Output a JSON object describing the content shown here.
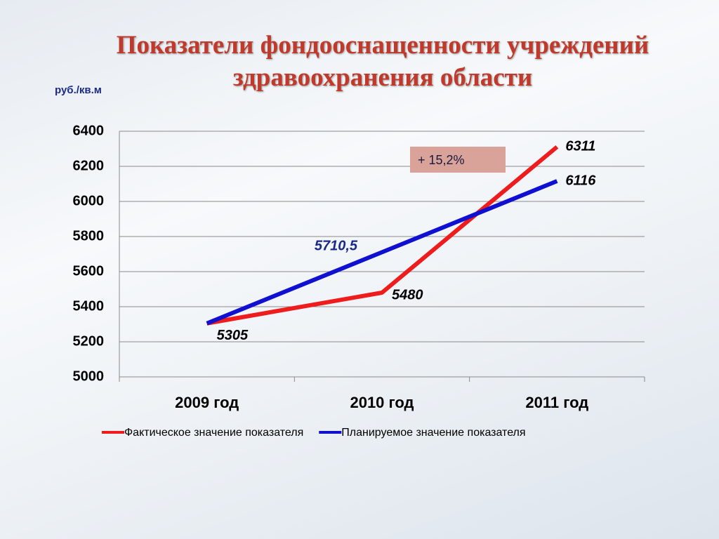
{
  "chart_data": {
    "type": "line",
    "title": "Показатели фондооснащенности учреждений здравоохранения области",
    "y_axis_label": "руб./кв.м",
    "annotation": "+ 15,2%",
    "categories": [
      "2009 год",
      "2010 год",
      "2011 год"
    ],
    "series": [
      {
        "name": "Фактическое значение показателя",
        "color": "#ee1c1c",
        "values": [
          5305,
          5480,
          6311
        ]
      },
      {
        "name": "Планируемое значение показателя",
        "color": "#1010d0",
        "values": [
          5305,
          5710.5,
          6116
        ],
        "value_labels": [
          null,
          "5710,5",
          "6116"
        ]
      }
    ],
    "ylim": [
      5000,
      6400
    ],
    "yticks": [
      5000,
      5200,
      5400,
      5600,
      5800,
      6000,
      6200,
      6400
    ],
    "grid": true,
    "legend": "bottom"
  }
}
